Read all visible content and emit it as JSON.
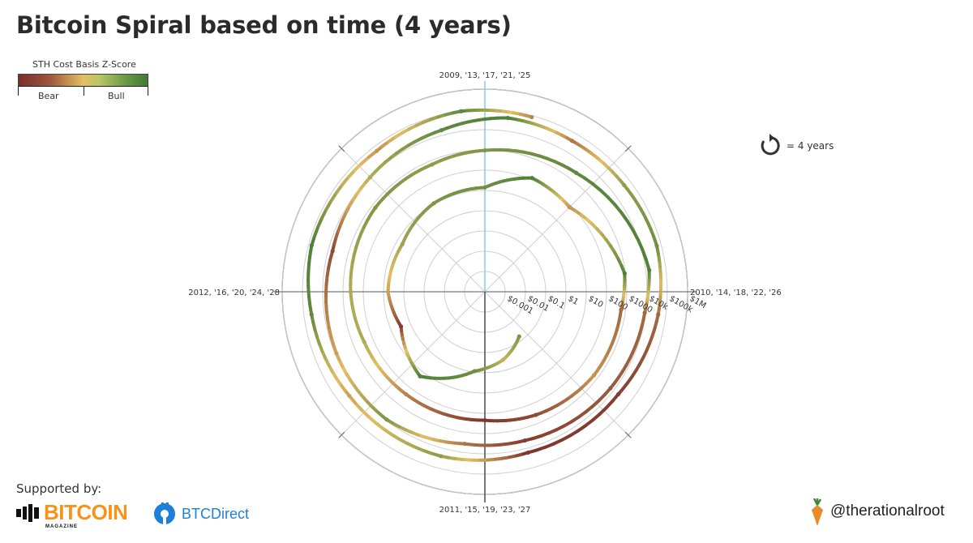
{
  "title": "Bitcoin Spiral based on time (4 years)",
  "legend": {
    "title": "STH Cost Basis Z-Score",
    "bear_label": "Bear",
    "bull_label": "Bull"
  },
  "rotation_note": {
    "icon": "rotation-arrow-icon",
    "text": "=  4 years"
  },
  "footer": {
    "supported_by": "Supported by:",
    "sponsor1_name": "BITCOIN",
    "sponsor1_sub": "MAGAZINE",
    "sponsor2_name": "BTCDirect",
    "handle": "@therationalroot"
  },
  "colors": {
    "bear": "#7a2e2b",
    "neutral": "#e2bf63",
    "bull": "#3f7a35",
    "bitcoin_magazine": "#f7931a",
    "btc_direct": "#1e7fd8",
    "top_axis": "#7ec8e3"
  },
  "chart_data": {
    "type": "polar-spiral",
    "angular_axis_labels": {
      "top": "2009, '13, '17, '21, '25",
      "right": "2010, '14, '18, '22, '26",
      "bottom": "2011, '15, '19, '23, '27",
      "left": "2012, '16, '20, '24, '28"
    },
    "radial_scale": "log",
    "radial_tick_labels": [
      "$0.001",
      "$0.01",
      "$0.1",
      "$1",
      "$10",
      "$100",
      "$1000",
      "$10k",
      "$100k",
      "$1M"
    ],
    "radial_tick_values": [
      0.001,
      0.01,
      0.1,
      1,
      10,
      100,
      1000,
      10000,
      100000,
      1000000
    ],
    "color_metric": "STH Cost Basis Z-Score",
    "period_years": 4,
    "series_points": [
      {
        "date": "2010-08",
        "price": 0.06,
        "z": 0.6
      },
      {
        "date": "2010-11",
        "price": 0.3,
        "z": 0.2
      },
      {
        "date": "2011-02",
        "price": 0.9,
        "z": 0.7
      },
      {
        "date": "2011-06",
        "price": 18,
        "z": 0.9
      },
      {
        "date": "2011-10",
        "price": 3,
        "z": -0.9
      },
      {
        "date": "2012-01",
        "price": 6,
        "z": -0.2
      },
      {
        "date": "2012-05",
        "price": 5,
        "z": 0.4
      },
      {
        "date": "2012-09",
        "price": 11,
        "z": 0.6
      },
      {
        "date": "2013-01",
        "price": 14,
        "z": 0.7
      },
      {
        "date": "2013-04",
        "price": 120,
        "z": 0.9
      },
      {
        "date": "2013-07",
        "price": 80,
        "z": -0.3
      },
      {
        "date": "2013-12",
        "price": 900,
        "z": 0.9
      },
      {
        "date": "2014-02",
        "price": 600,
        "z": -0.6
      },
      {
        "date": "2014-06",
        "price": 600,
        "z": -0.3
      },
      {
        "date": "2014-10",
        "price": 380,
        "z": -0.8
      },
      {
        "date": "2015-01",
        "price": 220,
        "z": -0.95
      },
      {
        "date": "2015-06",
        "price": 240,
        "z": -0.4
      },
      {
        "date": "2015-10",
        "price": 280,
        "z": 0.3
      },
      {
        "date": "2016-01",
        "price": 420,
        "z": 0.3
      },
      {
        "date": "2016-06",
        "price": 650,
        "z": 0.6
      },
      {
        "date": "2016-10",
        "price": 630,
        "z": 0.5
      },
      {
        "date": "2017-01",
        "price": 950,
        "z": 0.6
      },
      {
        "date": "2017-06",
        "price": 2500,
        "z": 0.8
      },
      {
        "date": "2017-12",
        "price": 15000,
        "z": 0.9
      },
      {
        "date": "2018-02",
        "price": 9000,
        "z": -0.6
      },
      {
        "date": "2018-06",
        "price": 6500,
        "z": -0.7
      },
      {
        "date": "2018-11",
        "price": 4000,
        "z": -0.9
      },
      {
        "date": "2019-02",
        "price": 3700,
        "z": -0.5
      },
      {
        "date": "2019-06",
        "price": 9000,
        "z": 0.6
      },
      {
        "date": "2019-10",
        "price": 8500,
        "z": -0.2
      },
      {
        "date": "2020-03",
        "price": 6000,
        "z": -0.8
      },
      {
        "date": "2020-07",
        "price": 10000,
        "z": 0.3
      },
      {
        "date": "2020-11",
        "price": 18000,
        "z": 0.8
      },
      {
        "date": "2021-02",
        "price": 45000,
        "z": 0.9
      },
      {
        "date": "2021-05",
        "price": 40000,
        "z": -0.5
      },
      {
        "date": "2021-08",
        "price": 45000,
        "z": 0.5
      },
      {
        "date": "2021-11",
        "price": 60000,
        "z": 0.7
      },
      {
        "date": "2022-02",
        "price": 42000,
        "z": -0.6
      },
      {
        "date": "2022-06",
        "price": 20000,
        "z": -0.9
      },
      {
        "date": "2022-11",
        "price": 16500,
        "z": -0.95
      },
      {
        "date": "2023-03",
        "price": 25000,
        "z": 0.5
      },
      {
        "date": "2023-08",
        "price": 27000,
        "z": -0.2
      },
      {
        "date": "2023-12",
        "price": 42000,
        "z": 0.8
      },
      {
        "date": "2024-03",
        "price": 70000,
        "z": 0.9
      },
      {
        "date": "2024-08",
        "price": 58000,
        "z": -0.3
      },
      {
        "date": "2024-12",
        "price": 97000,
        "z": 0.8
      },
      {
        "date": "2025-03",
        "price": 84000,
        "z": -0.4
      }
    ]
  }
}
